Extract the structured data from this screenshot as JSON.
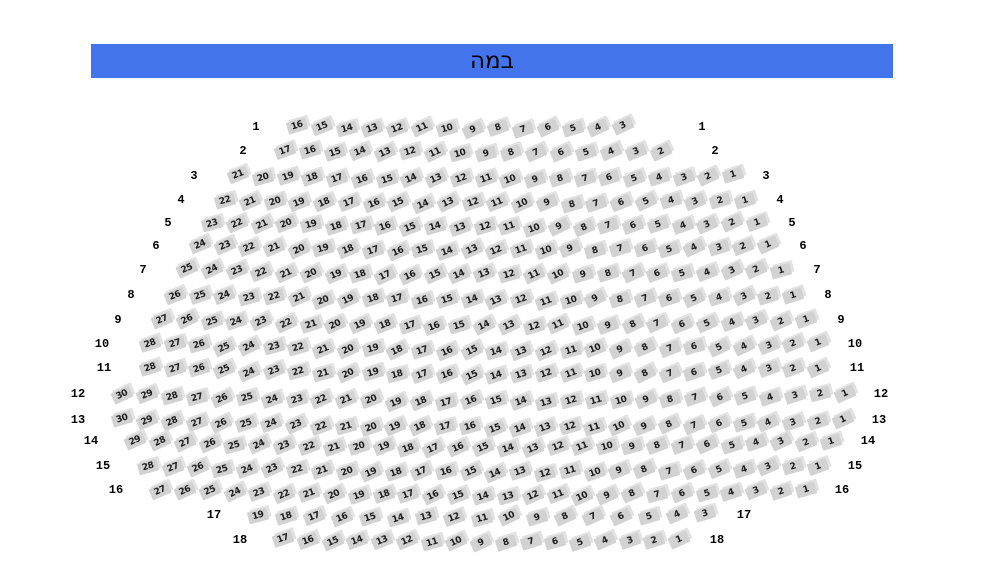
{
  "stage": {
    "label": "במה"
  },
  "colors": {
    "background": "#ffffff",
    "stage_bg": "#4474ec",
    "stage_text": "#000000",
    "seat_fill": "#d2d2d2",
    "seat_shadow": "#e2e2e2",
    "seat_text": "#1c1c1c",
    "row_label_text": "#000000"
  },
  "rows": [
    {
      "label": "1",
      "seats": [
        16,
        15,
        14,
        13,
        12,
        11,
        10,
        9,
        8,
        7,
        6,
        5,
        4,
        3
      ]
    },
    {
      "label": "2",
      "seats": [
        17,
        16,
        15,
        14,
        13,
        12,
        11,
        10,
        9,
        8,
        7,
        6,
        5,
        4,
        3,
        2
      ]
    },
    {
      "label": "3",
      "seats": [
        21,
        20,
        19,
        18,
        17,
        16,
        15,
        14,
        13,
        12,
        11,
        10,
        9,
        8,
        7,
        6,
        5,
        4,
        3,
        2,
        1
      ]
    },
    {
      "label": "4",
      "seats": [
        22,
        21,
        20,
        19,
        18,
        17,
        16,
        15,
        14,
        13,
        12,
        11,
        10,
        9,
        8,
        7,
        6,
        5,
        4,
        3,
        2,
        1
      ]
    },
    {
      "label": "5",
      "seats": [
        23,
        22,
        21,
        20,
        19,
        18,
        17,
        16,
        15,
        14,
        13,
        12,
        11,
        10,
        9,
        8,
        7,
        6,
        5,
        4,
        3,
        2,
        1
      ]
    },
    {
      "label": "6",
      "seats": [
        24,
        23,
        22,
        21,
        20,
        19,
        18,
        17,
        16,
        15,
        14,
        13,
        12,
        11,
        10,
        9,
        8,
        7,
        6,
        5,
        4,
        3,
        2,
        1
      ]
    },
    {
      "label": "7",
      "seats": [
        25,
        24,
        23,
        22,
        21,
        20,
        19,
        18,
        17,
        16,
        15,
        14,
        13,
        12,
        11,
        10,
        9,
        8,
        7,
        6,
        5,
        4,
        3,
        2,
        1
      ]
    },
    {
      "label": "8",
      "seats": [
        26,
        25,
        24,
        23,
        22,
        21,
        20,
        19,
        18,
        17,
        16,
        15,
        14,
        13,
        12,
        11,
        10,
        9,
        8,
        7,
        6,
        5,
        4,
        3,
        2,
        1
      ]
    },
    {
      "label": "9",
      "seats": [
        27,
        26,
        25,
        24,
        23,
        22,
        21,
        20,
        19,
        18,
        17,
        16,
        15,
        14,
        13,
        12,
        11,
        10,
        9,
        8,
        7,
        6,
        5,
        4,
        3,
        2,
        1
      ]
    },
    {
      "label": "10",
      "seats": [
        28,
        27,
        26,
        25,
        24,
        23,
        22,
        21,
        20,
        19,
        18,
        17,
        16,
        15,
        14,
        13,
        12,
        11,
        10,
        9,
        8,
        7,
        6,
        5,
        4,
        3,
        2,
        1
      ]
    },
    {
      "label": "11",
      "seats": [
        28,
        27,
        26,
        25,
        24,
        23,
        22,
        21,
        20,
        19,
        18,
        17,
        16,
        15,
        14,
        13,
        12,
        11,
        10,
        9,
        8,
        7,
        6,
        5,
        4,
        3,
        2,
        1
      ]
    },
    {
      "label": "12",
      "seats": [
        30,
        29,
        28,
        27,
        26,
        25,
        24,
        23,
        22,
        21,
        20,
        19,
        18,
        17,
        16,
        15,
        14,
        13,
        12,
        11,
        10,
        9,
        8,
        7,
        6,
        5,
        4,
        3,
        2,
        1
      ]
    },
    {
      "label": "13",
      "seats": [
        30,
        29,
        28,
        27,
        26,
        25,
        24,
        23,
        22,
        21,
        20,
        19,
        18,
        17,
        16,
        15,
        14,
        13,
        12,
        11,
        10,
        9,
        8,
        7,
        6,
        5,
        4,
        3,
        2,
        1
      ]
    },
    {
      "label": "14",
      "seats": [
        29,
        28,
        27,
        26,
        25,
        24,
        23,
        22,
        21,
        20,
        19,
        18,
        17,
        16,
        15,
        14,
        13,
        12,
        11,
        10,
        9,
        8,
        7,
        6,
        5,
        4,
        3,
        2,
        1
      ]
    },
    {
      "label": "15",
      "seats": [
        28,
        27,
        26,
        25,
        24,
        23,
        22,
        21,
        20,
        19,
        18,
        17,
        16,
        15,
        14,
        13,
        12,
        11,
        10,
        9,
        8,
        7,
        6,
        5,
        4,
        3,
        2,
        1
      ]
    },
    {
      "label": "16",
      "seats": [
        27,
        26,
        25,
        24,
        23,
        22,
        21,
        20,
        19,
        18,
        17,
        16,
        15,
        14,
        13,
        12,
        11,
        10,
        9,
        8,
        7,
        6,
        5,
        4,
        3,
        2,
        1
      ]
    },
    {
      "label": "17",
      "seats": [
        19,
        18,
        17,
        16,
        15,
        14,
        13,
        12,
        11,
        10,
        9,
        8,
        7,
        6,
        5,
        4,
        3
      ]
    },
    {
      "label": "18",
      "seats": [
        17,
        16,
        15,
        14,
        13,
        12,
        11,
        10,
        9,
        8,
        7,
        6,
        5,
        4,
        3,
        2,
        1
      ]
    }
  ]
}
